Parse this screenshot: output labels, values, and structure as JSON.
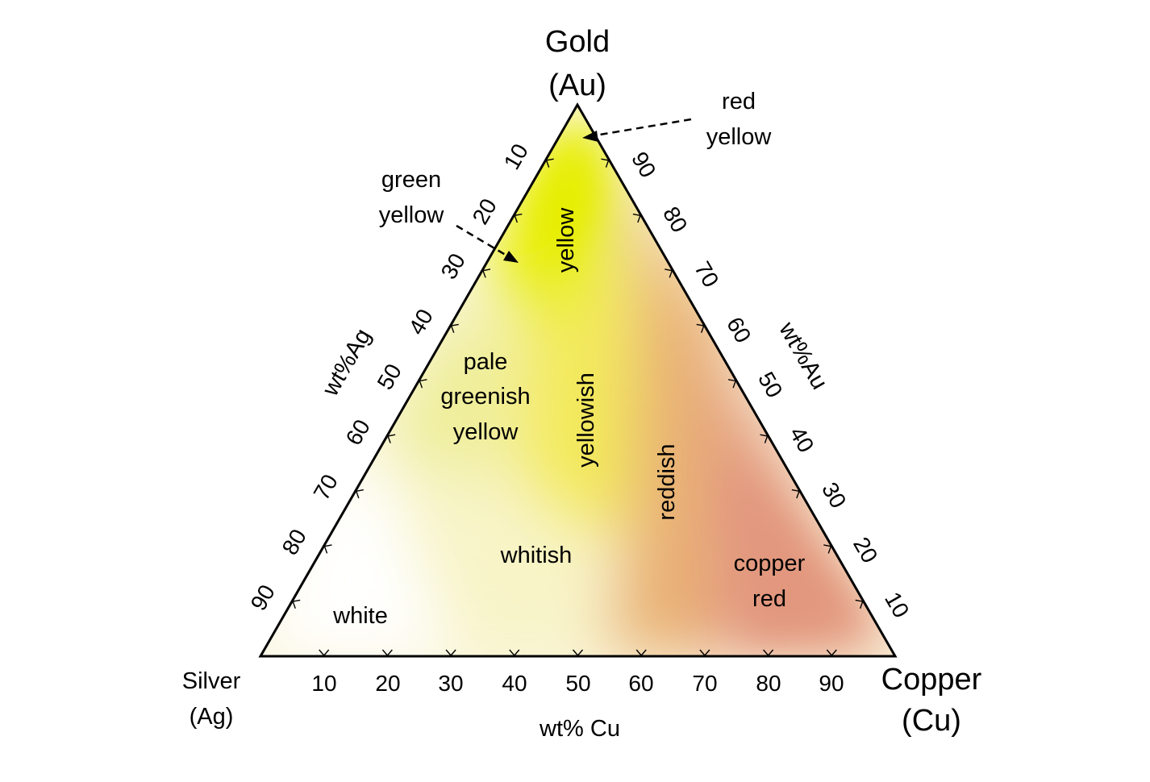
{
  "diagram": {
    "type": "ternary",
    "vertices": {
      "top": {
        "line1": "Gold",
        "line2": "(Au)"
      },
      "left": {
        "line1": "Silver",
        "line2": "(Ag)"
      },
      "right": {
        "line1": "Copper",
        "line2": "(Cu)"
      }
    },
    "axes": {
      "bottom": {
        "title": "wt% Cu",
        "ticks": [
          "10",
          "20",
          "30",
          "40",
          "50",
          "60",
          "70",
          "80",
          "90"
        ]
      },
      "left": {
        "title": "wt%Ag",
        "ticks": [
          "10",
          "20",
          "30",
          "40",
          "50",
          "60",
          "70",
          "80",
          "90"
        ]
      },
      "right": {
        "title": "wt%Au",
        "ticks": [
          "90",
          "80",
          "70",
          "60",
          "50",
          "40",
          "30",
          "20",
          "10"
        ]
      }
    },
    "regions": {
      "yellow": "yellow",
      "pale_line1": "pale",
      "pale_line2": "greenish",
      "pale_line3": "yellow",
      "yellowish": "yellowish",
      "reddish": "reddish",
      "whitish": "whitish",
      "white": "white",
      "copper_line1": "copper",
      "copper_line2": "red"
    },
    "callouts": {
      "green_yellow": {
        "line1": "green",
        "line2": "yellow"
      },
      "red_yellow": {
        "line1": "red",
        "line2": "yellow"
      }
    },
    "colors": {
      "gold": "#e8ec00",
      "yellowish": "#f0e860",
      "reddish": "#e8a878",
      "copper_red": "#e39a80",
      "white": "#ffffff",
      "outline": "#000000"
    }
  }
}
